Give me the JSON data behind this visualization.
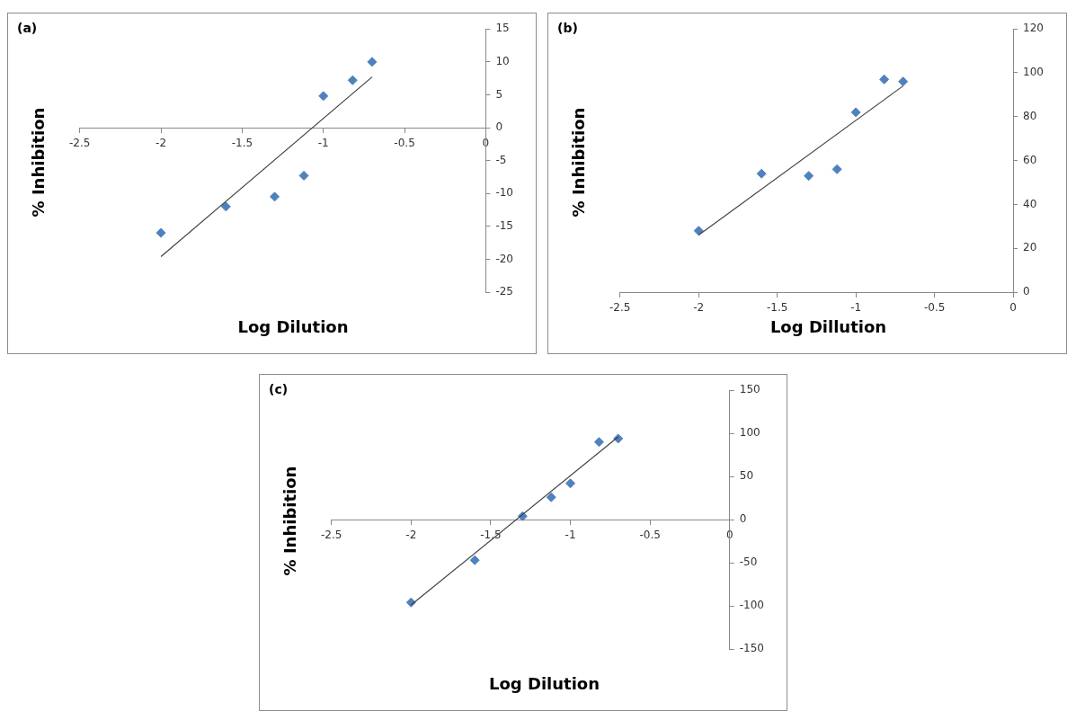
{
  "chart_data": [
    {
      "type": "scatter",
      "title": "(a)",
      "xlabel": "Log Dilution",
      "ylabel": "% Inhibition",
      "xlim": [
        -2.5,
        0
      ],
      "xticks": [
        -2.5,
        -2,
        -1.5,
        -1,
        -0.5,
        0
      ],
      "ylim": [
        -25,
        15
      ],
      "yticks": [
        -25,
        -20,
        -15,
        -10,
        -5,
        0,
        5,
        10,
        15
      ],
      "marker": "diamond",
      "grid": false,
      "series": [
        {
          "type": "scatter",
          "color": "#4f81bd",
          "x": [
            -2,
            -1.6,
            -1.3,
            -1.12,
            -1,
            -0.82,
            -0.7
          ],
          "values": [
            -16,
            -12,
            -10.5,
            -7.3,
            4.8,
            7.2,
            10
          ]
        },
        {
          "type": "line",
          "color": "#404040",
          "x": [
            -2,
            -0.7
          ],
          "values": [
            -19.6,
            7.7
          ],
          "marker": "none",
          "line_style": "solid"
        }
      ]
    },
    {
      "type": "scatter",
      "title": "(b)",
      "xlabel": "Log Dillution",
      "ylabel": "% Inhibition",
      "xlim": [
        -2.5,
        0
      ],
      "xticks": [
        -2.5,
        -2,
        -1.5,
        -1,
        -0.5,
        0
      ],
      "ylim": [
        0,
        120
      ],
      "yticks": [
        0,
        20,
        40,
        60,
        80,
        100,
        120
      ],
      "marker": "diamond",
      "grid": false,
      "series": [
        {
          "type": "scatter",
          "color": "#4f81bd",
          "x": [
            -2,
            -1.6,
            -1.3,
            -1.12,
            -1,
            -0.82,
            -0.7
          ],
          "values": [
            28,
            54,
            53,
            56,
            82,
            97,
            96
          ]
        },
        {
          "type": "line",
          "color": "#404040",
          "x": [
            -2,
            -0.7
          ],
          "values": [
            26,
            94
          ],
          "marker": "none",
          "line_style": "solid"
        }
      ]
    },
    {
      "type": "scatter",
      "title": "(c)",
      "xlabel": "Log Dilution",
      "ylabel": "% Inhibition",
      "xlim": [
        -2.5,
        0
      ],
      "xticks": [
        -2.5,
        -2,
        -1.5,
        -1,
        -0.5,
        0
      ],
      "ylim": [
        -150,
        150
      ],
      "yticks": [
        -150,
        -100,
        -50,
        0,
        50,
        100,
        150
      ],
      "marker": "diamond",
      "grid": false,
      "series": [
        {
          "type": "scatter",
          "color": "#4f81bd",
          "x": [
            -2,
            -1.6,
            -1.3,
            -1.12,
            -1,
            -0.82,
            -0.7
          ],
          "values": [
            -96,
            -47,
            4,
            26,
            42,
            90,
            94
          ]
        },
        {
          "type": "line",
          "color": "#404040",
          "x": [
            -2,
            -0.7
          ],
          "values": [
            -99,
            96
          ],
          "marker": "none",
          "line_style": "solid"
        }
      ]
    }
  ]
}
